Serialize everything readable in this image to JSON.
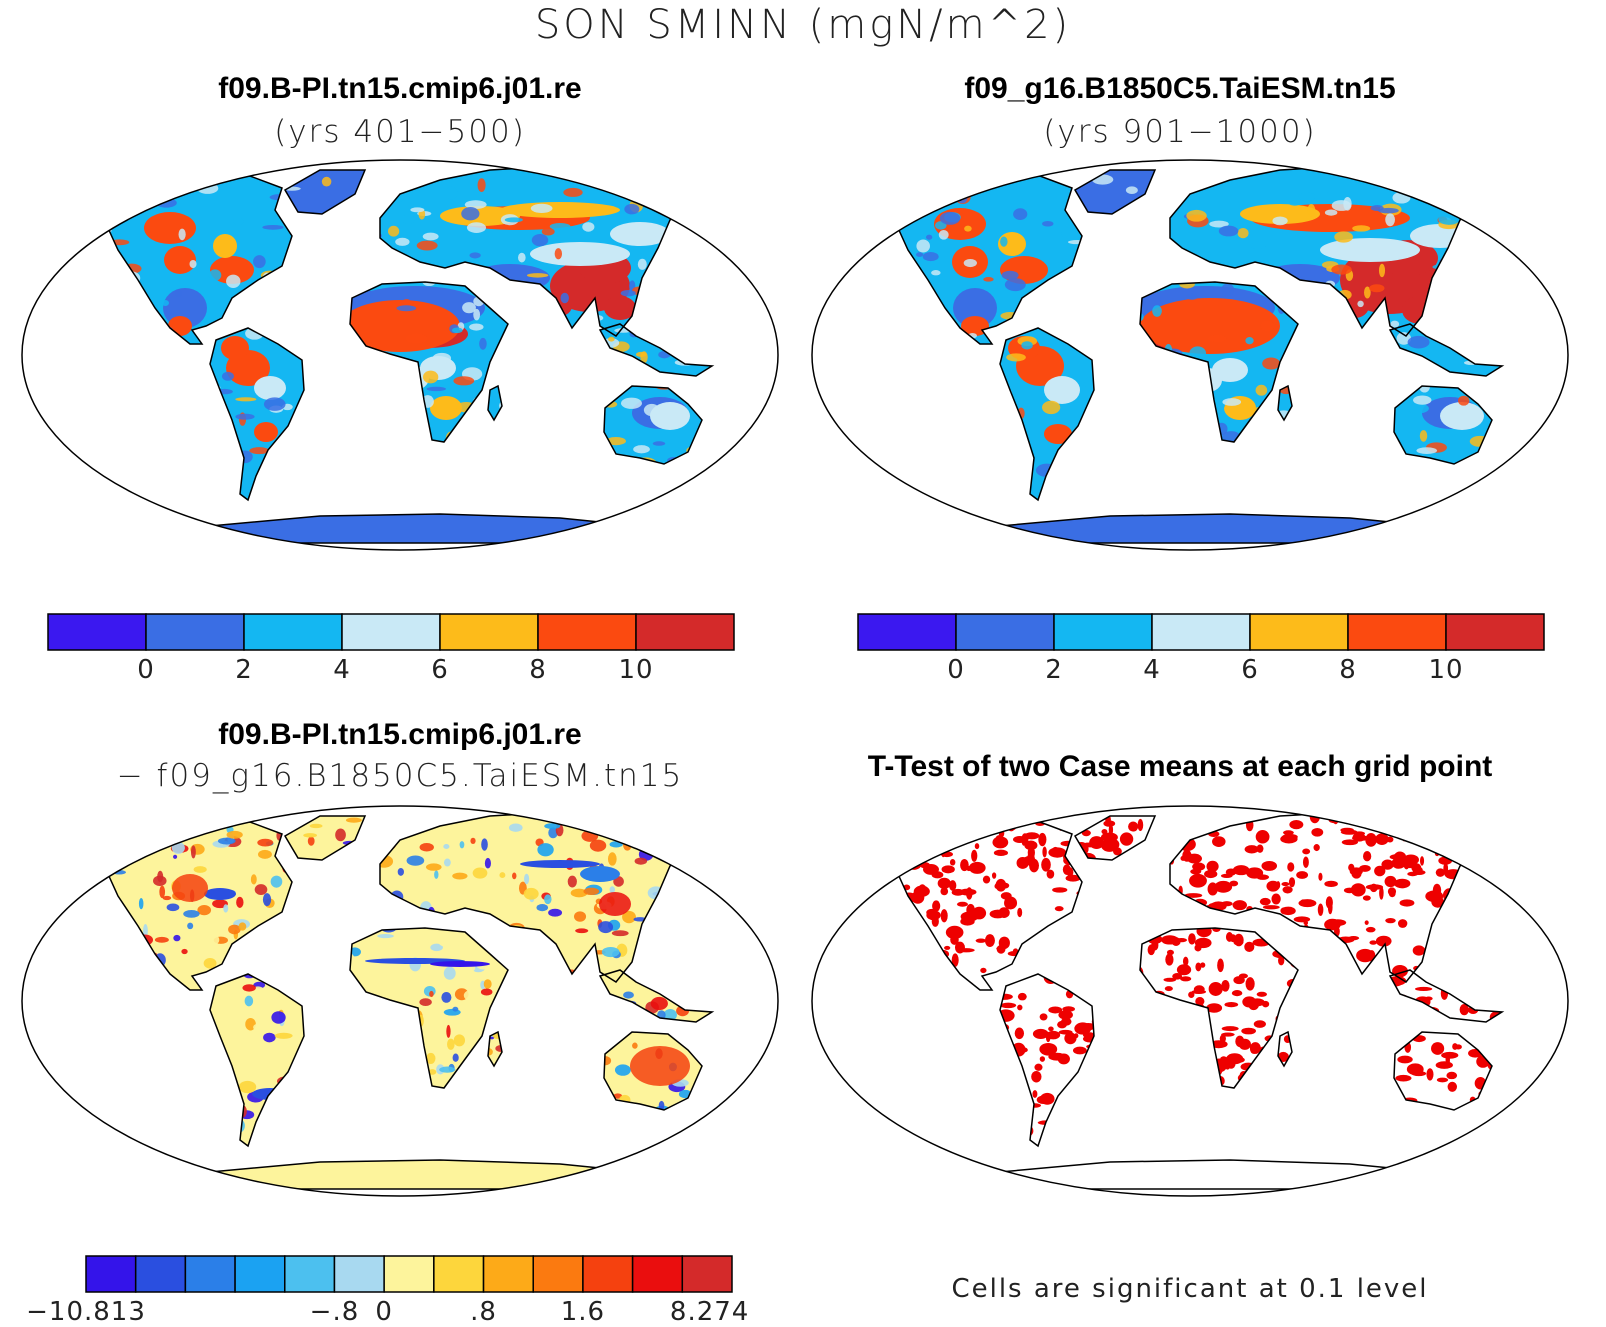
{
  "figure": {
    "title": "SON SMINN (mgN/m^2)"
  },
  "panels": [
    {
      "id": "case1",
      "title": "f09.B-PI.tn15.cmip6.j01.re",
      "subtitle": "(yrs 401−500)",
      "colorbar": {
        "colors": [
          "#3b18f0",
          "#3a6ee4",
          "#14b7f2",
          "#c9e9f6",
          "#fdbb1a",
          "#fb4a10",
          "#d42a2a"
        ],
        "tick_labels": [
          "0",
          "2",
          "4",
          "6",
          "8",
          "10"
        ]
      }
    },
    {
      "id": "case2",
      "title": "f09_g16.B1850C5.TaiESM.tn15",
      "subtitle": "(yrs 901−1000)",
      "colorbar": {
        "colors": [
          "#3b18f0",
          "#3a6ee4",
          "#14b7f2",
          "#c9e9f6",
          "#fdbb1a",
          "#fb4a10",
          "#d42a2a"
        ],
        "tick_labels": [
          "0",
          "2",
          "4",
          "6",
          "8",
          "10"
        ]
      }
    },
    {
      "id": "difference",
      "title": "f09.B-PI.tn15.cmip6.j01.re",
      "subtitle": "− f09_g16.B1850C5.TaiESM.tn15",
      "colorbar": {
        "colors": [
          "#3414ea",
          "#2a4fe0",
          "#2b7fe8",
          "#1ba2f2",
          "#4cc0ef",
          "#a8d9f0",
          "#fdf49c",
          "#fdd63c",
          "#fdaa18",
          "#fb7a10",
          "#f5410f",
          "#ea0e0e",
          "#d42a2a"
        ],
        "tick_labels": [
          "−10.813",
          "−.8",
          "0",
          ".8",
          "1.6",
          "8.274"
        ]
      }
    },
    {
      "id": "ttest",
      "title": "T-Test of two Case means at each grid point",
      "footnote": "Cells are significant at 0.1 level",
      "significant_color": "#ee0000"
    }
  ]
}
